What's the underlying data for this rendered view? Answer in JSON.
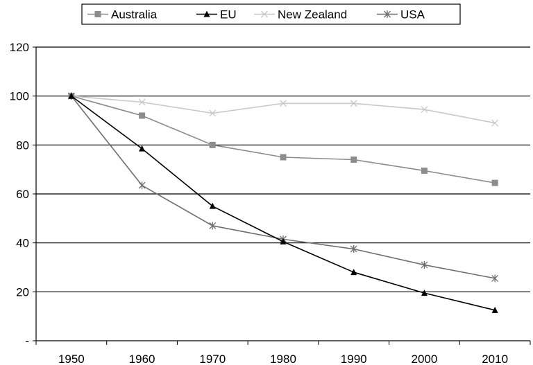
{
  "chart_data": {
    "type": "line",
    "x": [
      1950,
      1960,
      1970,
      1980,
      1990,
      2000,
      2010
    ],
    "x_tick_labels": [
      "1950",
      "1960",
      "1970",
      "1980",
      "1990",
      "2000",
      "2010"
    ],
    "y_tick_labels": [
      "-",
      "20",
      "40",
      "60",
      "80",
      "100",
      "120"
    ],
    "ylim": [
      0,
      120
    ],
    "grid": "horizontal",
    "legend_position": "top-center",
    "series": [
      {
        "name": "Australia",
        "values": [
          100,
          92,
          80,
          75,
          74,
          69.5,
          64.5
        ],
        "color": "#8c8c8c",
        "marker": "square"
      },
      {
        "name": "EU",
        "values": [
          100,
          78.5,
          55,
          40.5,
          28,
          19.5,
          12.5
        ],
        "color": "#000000",
        "marker": "triangle"
      },
      {
        "name": "New Zealand",
        "values": [
          100,
          97.5,
          93,
          97,
          97,
          94.5,
          89
        ],
        "color": "#c8c8c8",
        "marker": "x"
      },
      {
        "name": "USA",
        "values": [
          100,
          63.5,
          47,
          41.5,
          37.5,
          31,
          25.5
        ],
        "color": "#6e6e6e",
        "marker": "asterisk"
      }
    ]
  }
}
